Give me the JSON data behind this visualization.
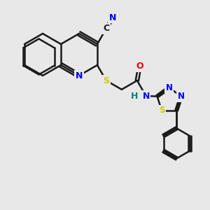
{
  "background_color": "#e8e8e8",
  "bond_color": "#1a1a1a",
  "bond_width": 1.8,
  "atom_colors": {
    "C": "#1a1a1a",
    "N": "#0000ee",
    "S": "#cccc00",
    "O": "#ee0000",
    "H": "#008080"
  },
  "figsize": [
    3.0,
    3.0
  ],
  "dpi": 100,
  "xlim": [
    0,
    10
  ],
  "ylim": [
    0,
    10
  ]
}
